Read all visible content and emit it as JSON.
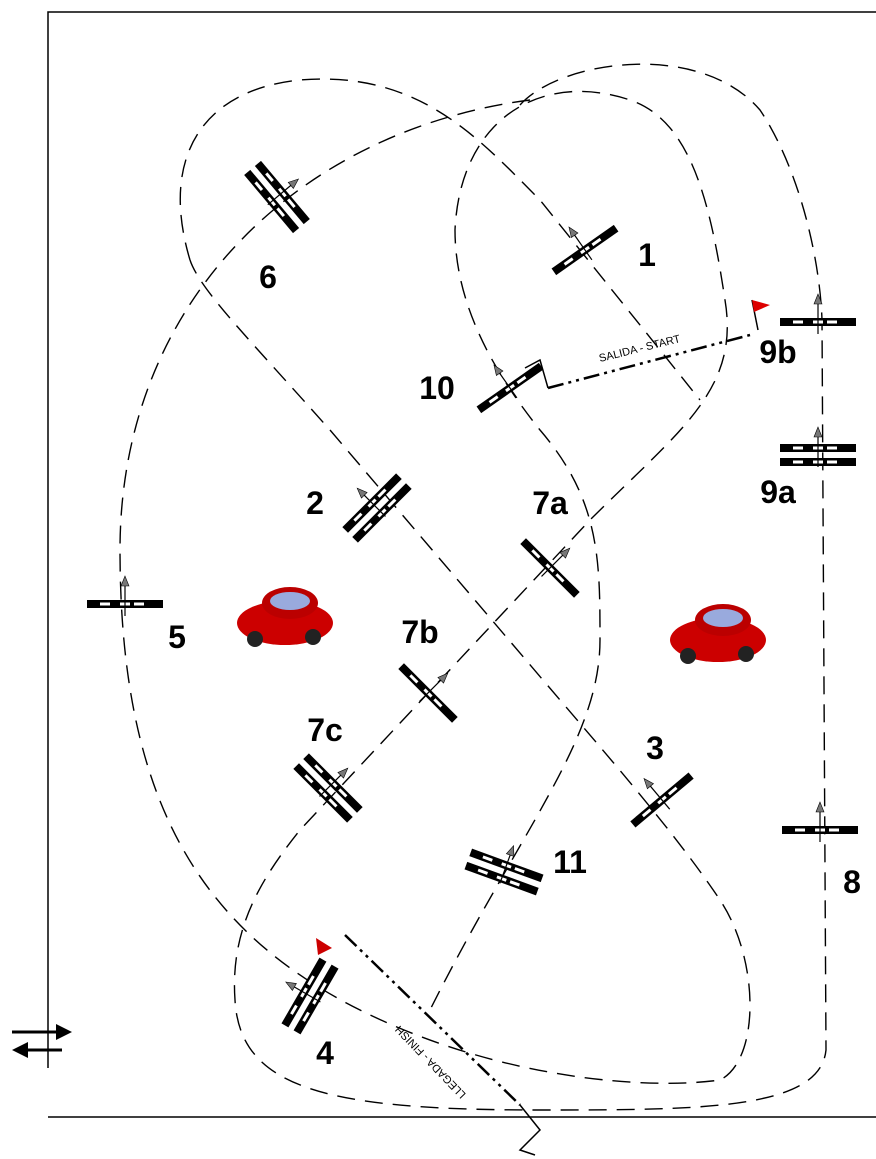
{
  "gates": [
    "1",
    "2",
    "3",
    "4",
    "5",
    "6",
    "7a",
    "7b",
    "7c",
    "8",
    "9a",
    "9b",
    "10",
    "11"
  ],
  "start": "SALIDA - START",
  "finish": "LLEGADA - FINISH"
}
